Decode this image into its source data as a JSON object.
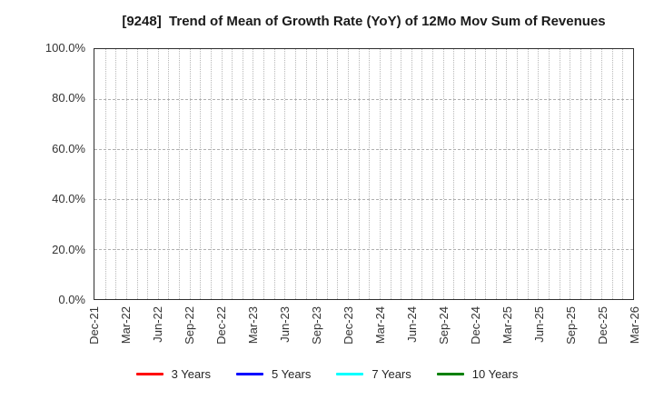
{
  "window": {
    "background": "#ffffff"
  },
  "chart_data": {
    "type": "line",
    "title": "[9248]  Trend of Mean of Growth Rate (YoY) of 12Mo Mov Sum of Revenues",
    "xlabel": "",
    "ylabel": "",
    "ylim": [
      0,
      100
    ],
    "y_unit": "%",
    "grid": true,
    "legend_position": "bottom-center",
    "y_ticks": [
      {
        "label": "0.0%",
        "value": 0
      },
      {
        "label": "20.0%",
        "value": 20
      },
      {
        "label": "40.0%",
        "value": 40
      },
      {
        "label": "60.0%",
        "value": 60
      },
      {
        "label": "80.0%",
        "value": 80
      },
      {
        "label": "100.0%",
        "value": 100
      }
    ],
    "y_gridlines": [
      20,
      40,
      60,
      80
    ],
    "x_total_months": 51,
    "x_ticks": [
      {
        "label": "Dec-21",
        "month": 0
      },
      {
        "label": "Mar-22",
        "month": 3
      },
      {
        "label": "Jun-22",
        "month": 6
      },
      {
        "label": "Sep-22",
        "month": 9
      },
      {
        "label": "Dec-22",
        "month": 12
      },
      {
        "label": "Mar-23",
        "month": 15
      },
      {
        "label": "Jun-23",
        "month": 18
      },
      {
        "label": "Sep-23",
        "month": 21
      },
      {
        "label": "Dec-23",
        "month": 24
      },
      {
        "label": "Mar-24",
        "month": 27
      },
      {
        "label": "Jun-24",
        "month": 30
      },
      {
        "label": "Sep-24",
        "month": 33
      },
      {
        "label": "Dec-24",
        "month": 36
      },
      {
        "label": "Mar-25",
        "month": 39
      },
      {
        "label": "Jun-25",
        "month": 42
      },
      {
        "label": "Sep-25",
        "month": 45
      },
      {
        "label": "Dec-25",
        "month": 48
      },
      {
        "label": "Mar-26",
        "month": 51
      }
    ],
    "series": [
      {
        "name": "3 Years",
        "color": "#ff0000",
        "values": []
      },
      {
        "name": "5 Years",
        "color": "#0000ff",
        "values": []
      },
      {
        "name": "7 Years",
        "color": "#00ffff",
        "values": []
      },
      {
        "name": "10 Years",
        "color": "#008000",
        "values": []
      }
    ]
  },
  "colors": {
    "grid_vertical": "#b8b8b8",
    "grid_horizontal": "#b0b0b0",
    "spine": "#2f2f2f",
    "tick_text": "#333333",
    "title_text": "#1a1a1a"
  }
}
